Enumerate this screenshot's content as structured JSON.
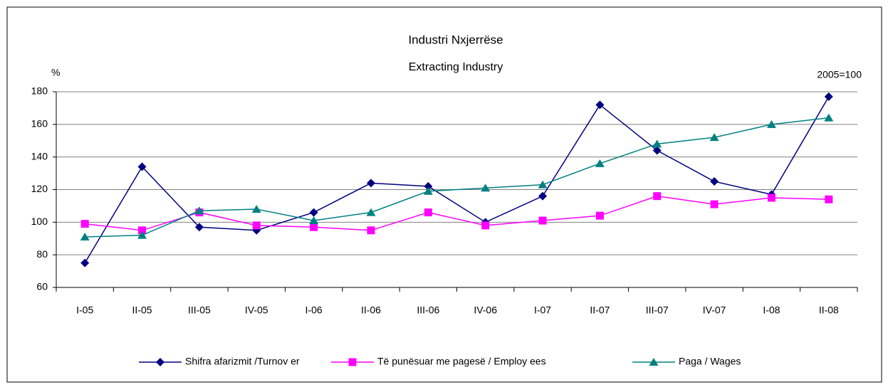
{
  "chart_data": {
    "type": "line",
    "title": "Industri Nxjerrëse",
    "subtitle": "Extracting Industry",
    "y_label": "%",
    "annotation": "2005=100",
    "categories": [
      "I-05",
      "II-05",
      "III-05",
      "IV-05",
      "I-06",
      "II-06",
      "III-06",
      "IV-06",
      "I-07",
      "II-07",
      "III-07",
      "IV-07",
      "I-08",
      "II-08"
    ],
    "series": [
      {
        "name": "Shifra afarizmit /Turnov er",
        "color": "#000080",
        "values": [
          75,
          134,
          97,
          95,
          106,
          124,
          122,
          100,
          116,
          172,
          144,
          125,
          117,
          177
        ]
      },
      {
        "name": "Të punësuar me pagesë / Employ ees",
        "color": "#ff00ff",
        "values": [
          99,
          95,
          106,
          98,
          97,
          95,
          106,
          98,
          101,
          104,
          116,
          111,
          115,
          114
        ]
      },
      {
        "name": "Paga / Wages",
        "color": "#008080",
        "values": [
          91,
          92,
          107,
          108,
          101,
          106,
          119,
          121,
          123,
          136,
          148,
          152,
          160,
          164
        ]
      }
    ],
    "ylim": [
      60,
      180
    ],
    "yticks": [
      60,
      80,
      100,
      120,
      140,
      160,
      180
    ],
    "grid": true,
    "legend": "bottom"
  }
}
